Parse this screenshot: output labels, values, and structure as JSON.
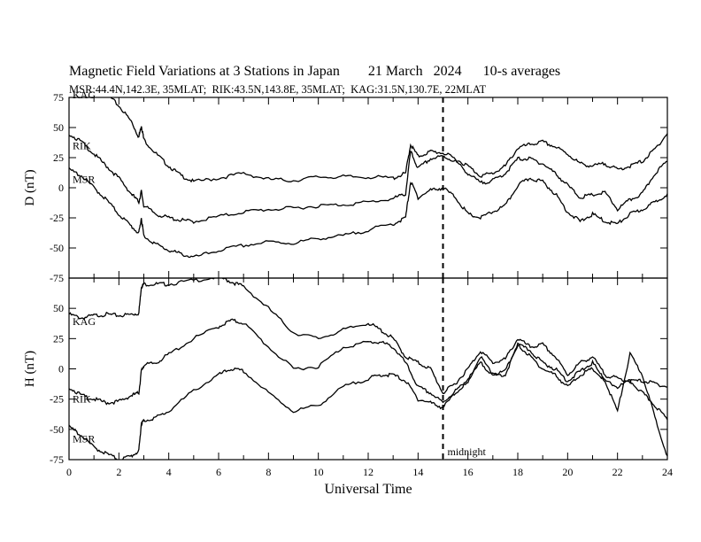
{
  "header": {
    "title": "Magnetic Field Variations at 3 Stations in Japan        21 March   2024      10-s averages",
    "stations": "MSR:44.4N,142.3E, 35MLAT;  RIK:43.5N,143.8E, 35MLAT;  KAG:31.5N,130.7E, 22MLAT"
  },
  "chart_data": [
    {
      "type": "line",
      "panel": "D",
      "ylabel": "D (nT)",
      "xlim": [
        0,
        24
      ],
      "ylim": [
        -75,
        75
      ],
      "yticks": [
        75,
        50,
        25,
        0,
        -25,
        -50,
        -75
      ],
      "series": [
        {
          "name": "KAG",
          "x": [
            0,
            0.5,
            1,
            1.5,
            2,
            2.5,
            2.8,
            2.9,
            3,
            3.5,
            4,
            4.5,
            5,
            6,
            7,
            8,
            9,
            10,
            11,
            12,
            13,
            13.5,
            13.7,
            14,
            14.5,
            15,
            15.5,
            16,
            16.5,
            17,
            17.5,
            18,
            18.5,
            19,
            19.5,
            20,
            20.5,
            21,
            21.5,
            22,
            22.5,
            23,
            23.5,
            24
          ],
          "y": [
            78,
            80,
            82,
            78,
            68,
            55,
            42,
            52,
            40,
            28,
            18,
            10,
            5,
            8,
            12,
            7,
            6,
            9,
            9,
            9,
            8,
            12,
            36,
            26,
            30,
            29,
            24,
            18,
            10,
            12,
            18,
            33,
            36,
            38,
            34,
            28,
            20,
            18,
            20,
            15,
            18,
            22,
            32,
            45
          ]
        },
        {
          "name": "RIK",
          "x": [
            0,
            0.5,
            1,
            1.5,
            2,
            2.5,
            2.8,
            2.9,
            3,
            3.5,
            4,
            4.5,
            5,
            6,
            7,
            8,
            9,
            10,
            11,
            12,
            13,
            13.5,
            13.7,
            14,
            14.5,
            15,
            15.5,
            16,
            16.5,
            17,
            17.5,
            18,
            18.5,
            19,
            19.5,
            20,
            20.5,
            21,
            21.5,
            22,
            22.5,
            23,
            23.5,
            24
          ],
          "y": [
            45,
            38,
            28,
            18,
            8,
            -5,
            -12,
            -3,
            -15,
            -22,
            -25,
            -27,
            -28,
            -24,
            -20,
            -18,
            -17,
            -15,
            -14,
            -12,
            -9,
            -5,
            30,
            16,
            24,
            26,
            22,
            12,
            4,
            6,
            12,
            24,
            24,
            20,
            12,
            2,
            -8,
            -6,
            -4,
            -18,
            -10,
            -5,
            12,
            22
          ]
        },
        {
          "name": "MSR",
          "x": [
            0,
            0.5,
            1,
            1.5,
            2,
            2.5,
            2.8,
            2.9,
            3,
            3.5,
            4,
            4.5,
            5,
            6,
            7,
            8,
            9,
            10,
            11,
            12,
            13,
            13.5,
            13.7,
            14,
            14.5,
            15,
            15.5,
            16,
            16.5,
            17,
            17.5,
            18,
            18.5,
            19,
            19.5,
            20,
            20.5,
            21,
            21.5,
            22,
            22.5,
            23,
            23.5,
            24
          ],
          "y": [
            15,
            10,
            0,
            -10,
            -22,
            -32,
            -38,
            -25,
            -40,
            -47,
            -52,
            -55,
            -58,
            -52,
            -48,
            -45,
            -46,
            -42,
            -40,
            -35,
            -30,
            -25,
            5,
            -8,
            -2,
            0,
            -8,
            -22,
            -25,
            -20,
            -15,
            2,
            8,
            5,
            -5,
            -20,
            -28,
            -22,
            -28,
            -30,
            -22,
            -18,
            -12,
            -5
          ]
        }
      ]
    },
    {
      "type": "line",
      "panel": "H",
      "ylabel": "H (nT)",
      "xlabel": "Universal Time",
      "xlim": [
        0,
        24
      ],
      "ylim": [
        -75,
        75
      ],
      "xticks": [
        0,
        2,
        4,
        6,
        8,
        10,
        12,
        14,
        16,
        18,
        20,
        22,
        24
      ],
      "yticks": [
        50,
        25,
        0,
        -25,
        -50,
        -75
      ],
      "midnight_ut": 15,
      "midnight_label": "midnight",
      "series": [
        {
          "name": "KAG",
          "x": [
            0,
            0.5,
            1,
            1.5,
            2,
            2.5,
            2.8,
            2.9,
            3,
            3.5,
            4,
            5,
            6,
            6.5,
            7,
            8,
            9,
            10,
            11,
            12,
            12.5,
            13,
            13.5,
            14,
            14.5,
            15,
            15.5,
            16,
            16.5,
            17,
            17.5,
            18,
            18.5,
            19,
            19.5,
            20,
            20.5,
            21,
            21.5,
            22,
            22.5,
            23,
            23.5,
            24
          ],
          "y": [
            45,
            42,
            44,
            45,
            44,
            45,
            46,
            68,
            70,
            70,
            70,
            73,
            76,
            72,
            68,
            50,
            30,
            25,
            32,
            38,
            32,
            25,
            10,
            5,
            0,
            -20,
            -12,
            0,
            15,
            5,
            8,
            25,
            18,
            20,
            10,
            -5,
            5,
            10,
            -5,
            -8,
            -10,
            -10,
            -12,
            -15
          ]
        },
        {
          "name": "RIK",
          "x": [
            0,
            0.5,
            1,
            1.5,
            2,
            2.5,
            2.8,
            2.9,
            3,
            3.5,
            4,
            5,
            6,
            6.5,
            7,
            8,
            9,
            10,
            11,
            12,
            12.5,
            13,
            13.5,
            14,
            14.5,
            15,
            15.5,
            16,
            16.5,
            17,
            17.5,
            18,
            18.5,
            19,
            19.5,
            20,
            20.5,
            21,
            21.5,
            22,
            22.5,
            23,
            23.5,
            24
          ],
          "y": [
            -15,
            -22,
            -25,
            -28,
            -27,
            -22,
            -20,
            -2,
            3,
            5,
            12,
            25,
            35,
            40,
            38,
            18,
            0,
            2,
            18,
            22,
            22,
            18,
            5,
            -15,
            -20,
            -28,
            -18,
            -10,
            5,
            -5,
            -5,
            20,
            10,
            0,
            -5,
            -15,
            -5,
            0,
            -10,
            -15,
            -10,
            -20,
            -30,
            -42
          ]
        },
        {
          "name": "MSR",
          "x": [
            0,
            0.5,
            1,
            1.5,
            2,
            2.5,
            2.8,
            2.9,
            3,
            3.5,
            4,
            5,
            6,
            6.5,
            7,
            8,
            9,
            10,
            11,
            12,
            12.5,
            13,
            13.5,
            14,
            14.5,
            15,
            15.5,
            16,
            16.5,
            17,
            17.5,
            18,
            18.5,
            19,
            19.5,
            20,
            20.5,
            21,
            21.5,
            22,
            22.5,
            23,
            23.5,
            24
          ],
          "y": [
            -48,
            -55,
            -65,
            -70,
            -75,
            -72,
            -68,
            -45,
            -43,
            -40,
            -35,
            -18,
            -5,
            0,
            -2,
            -20,
            -35,
            -30,
            -15,
            -8,
            -5,
            -5,
            -10,
            -25,
            -28,
            -32,
            -20,
            -10,
            10,
            -5,
            -2,
            20,
            15,
            5,
            0,
            -10,
            -2,
            5,
            -10,
            -35,
            12,
            -5,
            -40,
            -72
          ]
        }
      ]
    }
  ]
}
